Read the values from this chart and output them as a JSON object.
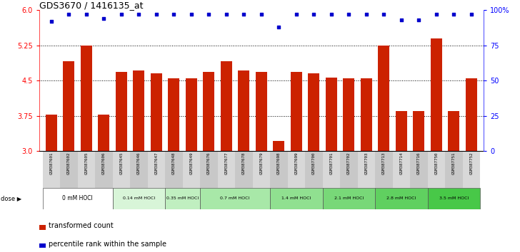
{
  "title": "GDS3670 / 1416135_at",
  "samples": [
    "GSM387601",
    "GSM387602",
    "GSM387605",
    "GSM387606",
    "GSM387645",
    "GSM387646",
    "GSM387647",
    "GSM387648",
    "GSM387649",
    "GSM387676",
    "GSM387677",
    "GSM387678",
    "GSM387679",
    "GSM387698",
    "GSM387699",
    "GSM387700",
    "GSM387701",
    "GSM387702",
    "GSM387703",
    "GSM387713",
    "GSM387714",
    "GSM387716",
    "GSM387750",
    "GSM387751",
    "GSM387752"
  ],
  "bar_values": [
    3.78,
    4.92,
    5.25,
    3.78,
    4.68,
    4.72,
    4.65,
    4.55,
    4.55,
    4.68,
    4.92,
    4.72,
    4.68,
    3.22,
    4.68,
    4.65,
    4.57,
    4.55,
    4.55,
    5.25,
    3.85,
    3.85,
    5.4,
    3.85,
    4.55
  ],
  "percentile_values": [
    92,
    97,
    97,
    94,
    97,
    97,
    97,
    97,
    97,
    97,
    97,
    97,
    97,
    88,
    97,
    97,
    97,
    97,
    97,
    97,
    93,
    93,
    97,
    97,
    97
  ],
  "dose_groups": [
    {
      "label": "0 mM HOCl",
      "start": 0,
      "end": 4,
      "color": "#ffffff"
    },
    {
      "label": "0.14 mM HOCl",
      "start": 4,
      "end": 7,
      "color": "#d8f5d8"
    },
    {
      "label": "0.35 mM HOCl",
      "start": 7,
      "end": 9,
      "color": "#c0efc0"
    },
    {
      "label": "0.7 mM HOCl",
      "start": 9,
      "end": 13,
      "color": "#a8e8a8"
    },
    {
      "label": "1.4 mM HOCl",
      "start": 13,
      "end": 16,
      "color": "#90e090"
    },
    {
      "label": "2.1 mM HOCl",
      "start": 16,
      "end": 19,
      "color": "#78d878"
    },
    {
      "label": "2.8 mM HOCl",
      "start": 19,
      "end": 22,
      "color": "#60d060"
    },
    {
      "label": "3.5 mM HOCl",
      "start": 22,
      "end": 25,
      "color": "#48c848"
    }
  ],
  "ylim_left": [
    3.0,
    6.0
  ],
  "ylim_right": [
    0,
    100
  ],
  "yticks_left": [
    3.0,
    3.75,
    4.5,
    5.25,
    6.0
  ],
  "yticks_right": [
    0,
    25,
    50,
    75,
    100
  ],
  "bar_color": "#cc2200",
  "dot_color": "#0000cc",
  "legend_bar": "transformed count",
  "legend_dot": "percentile rank within the sample"
}
